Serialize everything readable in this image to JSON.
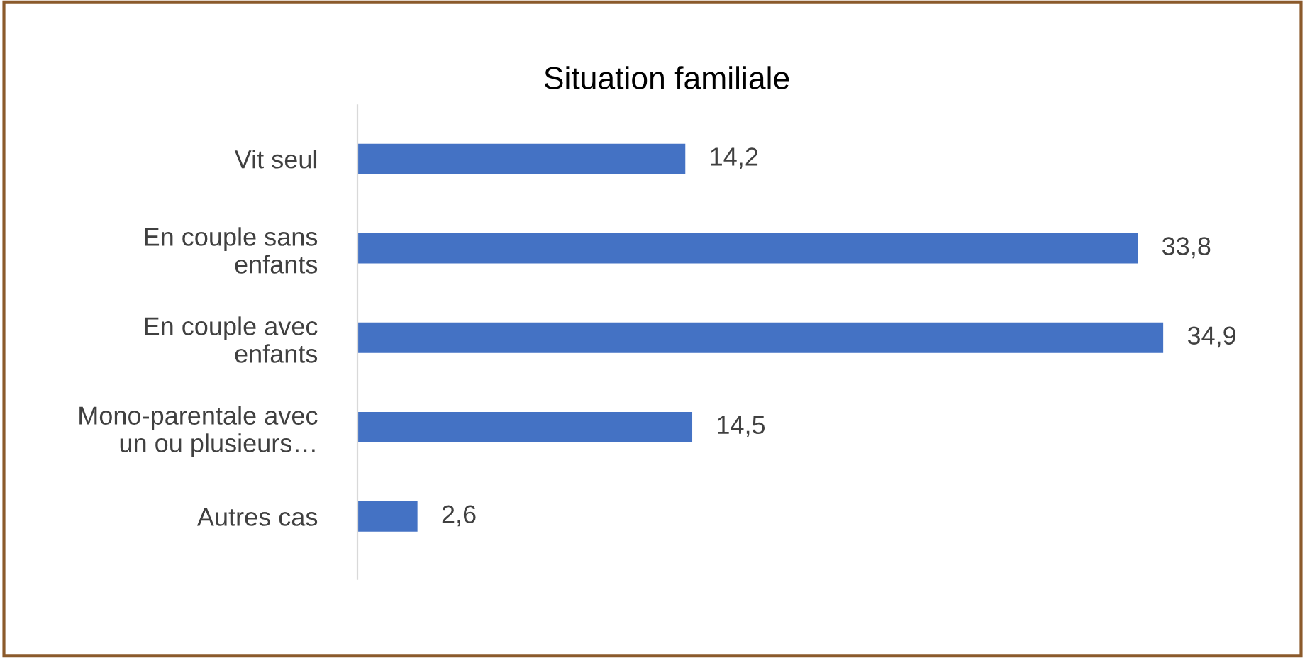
{
  "chart_data": {
    "type": "bar",
    "orientation": "horizontal",
    "title": "Situation familiale",
    "categories": [
      "Vit seul",
      "En couple sans\nenfants",
      "En couple avec\nenfants",
      "Mono-parentale avec\nun ou plusieurs…",
      "Autres cas"
    ],
    "values": [
      14.2,
      33.8,
      34.9,
      14.5,
      2.6
    ],
    "value_labels": [
      "14,2",
      "33,8",
      "34,9",
      "14,5",
      "2,6"
    ],
    "color": "#4472c4",
    "grid": false,
    "legend": false
  }
}
